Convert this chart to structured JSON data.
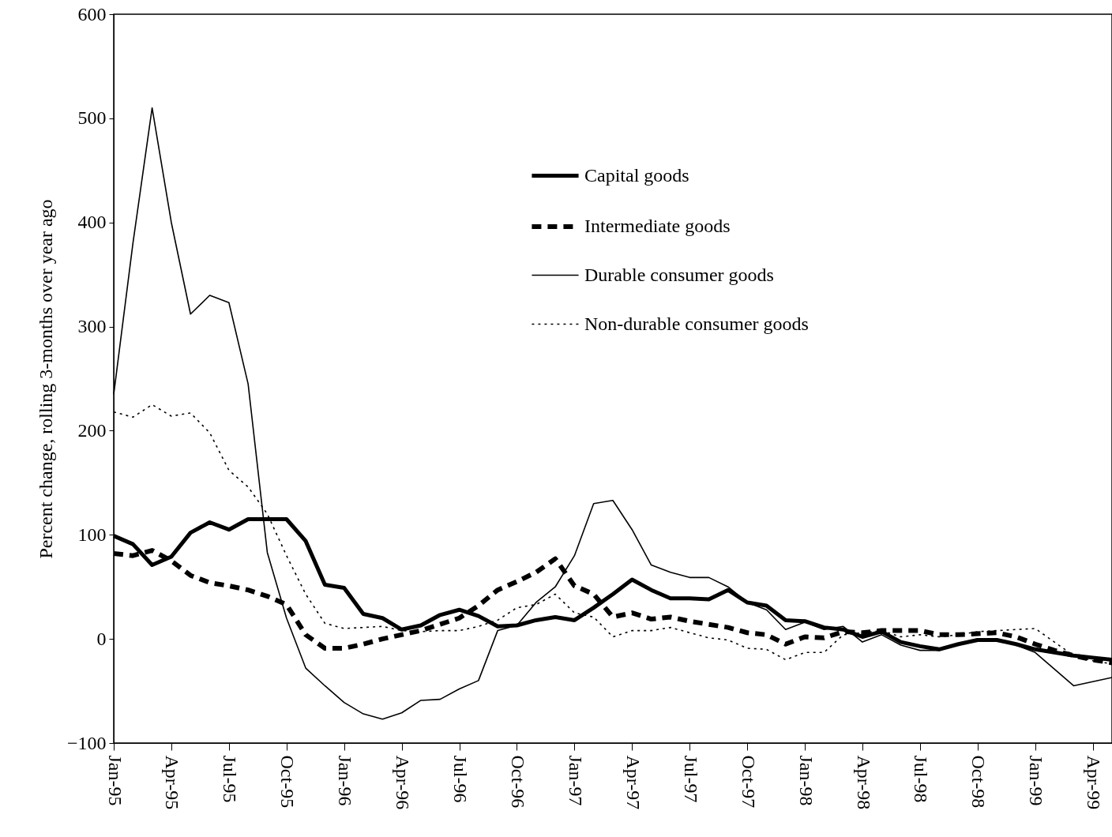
{
  "chart_data": {
    "type": "line",
    "ylabel": "Percent change, rolling 3-months over year ago",
    "categories": [
      "Jan-95",
      null,
      null,
      "Apr-95",
      null,
      null,
      "Jul-95",
      null,
      null,
      "Oct-95",
      null,
      null,
      "Jan-96",
      null,
      null,
      "Apr-96",
      null,
      null,
      "Jul-96",
      null,
      null,
      "Oct-96",
      null,
      null,
      "Jan-97",
      null,
      null,
      "Apr-97",
      null,
      null,
      "Jul-97",
      null,
      null,
      "Oct-97",
      null,
      null,
      "Jan-98",
      null,
      null,
      "Apr-98",
      null,
      null,
      "Jul-98",
      null,
      null,
      "Oct-98",
      null,
      null,
      "Jan-99",
      null,
      null,
      "Apr-99",
      null
    ],
    "ylim": [
      -100,
      600
    ],
    "yticks": [
      -100,
      0,
      100,
      200,
      300,
      400,
      500,
      600
    ],
    "grid": false,
    "legend": "top right",
    "marker": "none",
    "series": [
      {
        "name": "Capital goods",
        "color": "#000000",
        "line_style": "solid",
        "values": [
          99,
          91,
          71,
          79,
          102,
          112,
          105,
          115,
          115,
          115,
          94,
          52,
          49,
          24,
          20,
          9,
          13,
          23,
          28,
          22,
          12,
          13,
          18,
          21,
          18,
          30,
          43,
          57,
          47,
          39,
          39,
          38,
          47,
          35,
          32,
          18,
          17,
          11,
          9,
          2,
          7,
          -3,
          -7,
          -10,
          -5,
          -1,
          -1,
          -5,
          -10,
          -13,
          -16,
          -18,
          -20
        ]
      },
      {
        "name": "Intermediate goods",
        "color": "#000000",
        "line_style": "dashed",
        "values": [
          82,
          80,
          85,
          75,
          61,
          54,
          51,
          47,
          41,
          33,
          4,
          -9,
          -9,
          -5,
          0,
          4,
          8,
          14,
          20,
          32,
          47,
          55,
          64,
          77,
          51,
          43,
          21,
          25,
          19,
          21,
          17,
          14,
          11,
          6,
          4,
          -5,
          2,
          1,
          7,
          6,
          8,
          8,
          8,
          4,
          4,
          5,
          6,
          2,
          -5,
          -11,
          -16,
          -20,
          -23
        ]
      },
      {
        "name": "Durable consumer goods",
        "color": "#000000",
        "line_style": "solid",
        "values": [
          235,
          380,
          510,
          400,
          312,
          330,
          323,
          245,
          83,
          20,
          -28,
          -45,
          -61,
          -72,
          -77,
          -71,
          -59,
          -58,
          -48,
          -40,
          8,
          13,
          35,
          50,
          80,
          130,
          133,
          105,
          71,
          64,
          59,
          59,
          50,
          35,
          28,
          9,
          16,
          9,
          12,
          -3,
          4,
          -6,
          -11,
          -11,
          -5,
          0,
          0,
          -6,
          -13,
          -29,
          -45,
          -41,
          -37
        ]
      },
      {
        "name": "Non-durable consumer goods",
        "color": "#000000",
        "line_style": "dotted",
        "values": [
          218,
          213,
          225,
          214,
          217,
          198,
          162,
          146,
          120,
          80,
          43,
          15,
          10,
          11,
          12,
          8,
          7,
          8,
          8,
          12,
          18,
          30,
          33,
          43,
          25,
          21,
          2,
          8,
          8,
          11,
          6,
          1,
          -1,
          -9,
          -10,
          -20,
          -13,
          -13,
          4,
          6,
          8,
          2,
          4,
          2,
          4,
          7,
          8,
          9,
          10,
          -3,
          -16,
          -21,
          -24
        ]
      }
    ]
  }
}
